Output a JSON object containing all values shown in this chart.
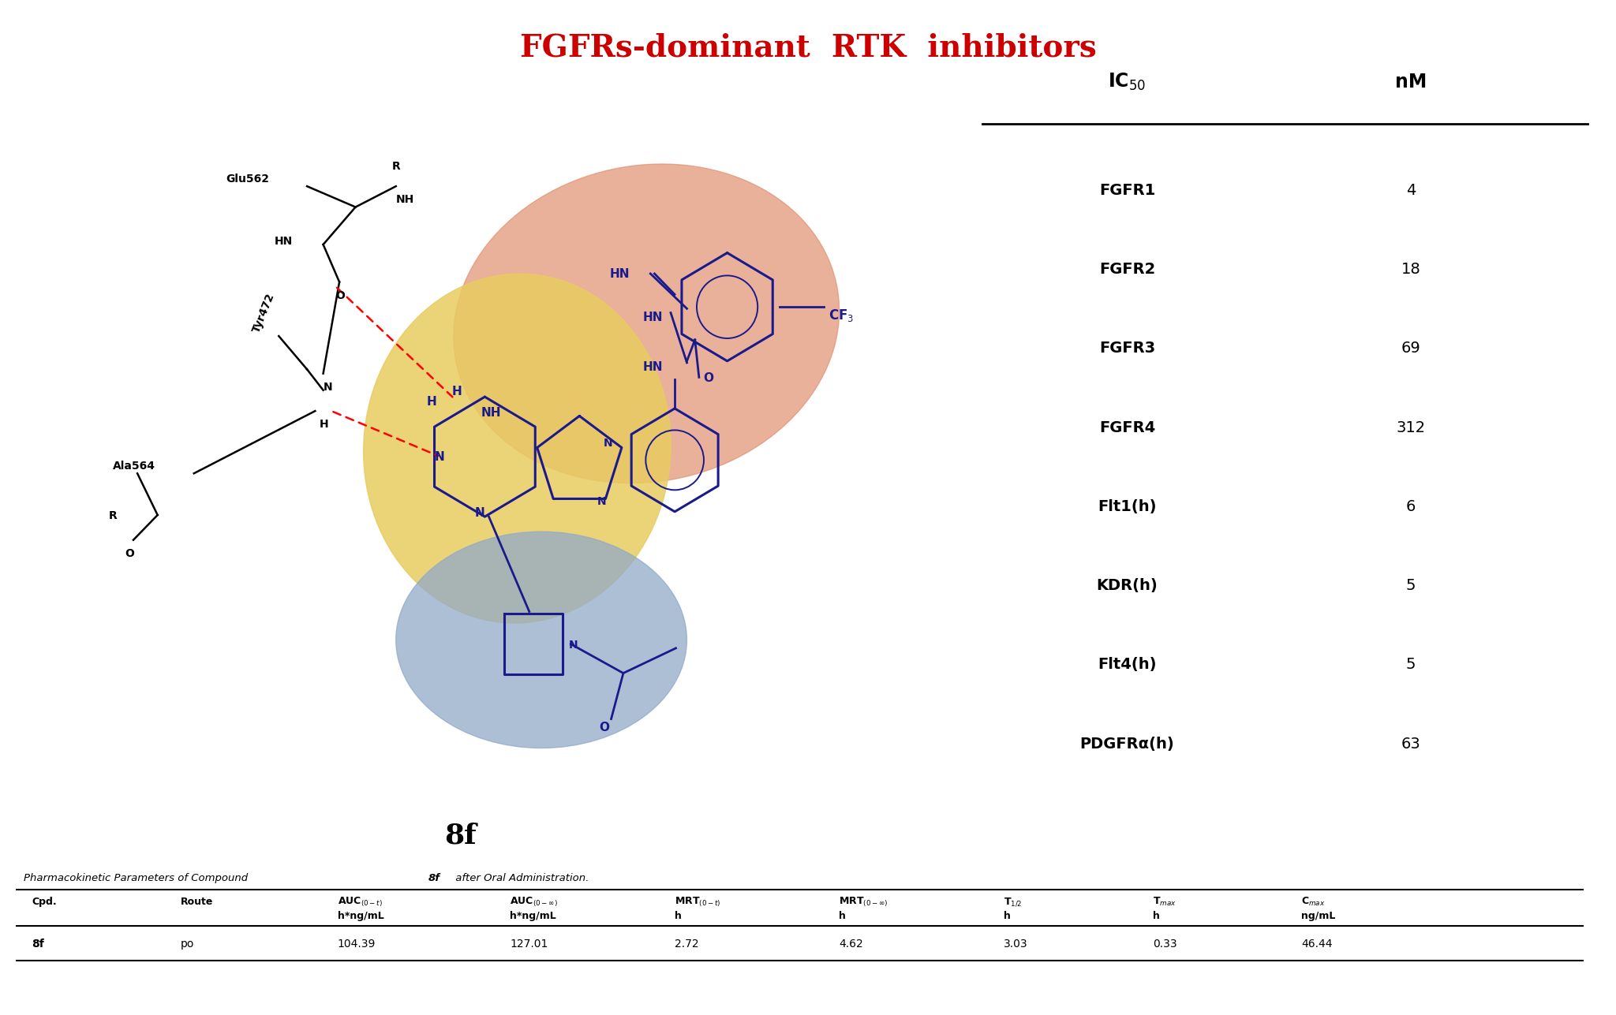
{
  "title": "FGFRs-dominant  RTK  inhibitors",
  "title_color": "#CC0000",
  "title_fontsize": 28,
  "ic50_targets": [
    "FGFR1",
    "FGFR2",
    "FGFR3",
    "FGFR4",
    "Flt1(h)",
    "KDR(h)",
    "Flt4(h)",
    "PDGFRα(h)"
  ],
  "ic50_values": [
    "4",
    "18",
    "69",
    "312",
    "6",
    "5",
    "5",
    "63"
  ],
  "pk_row": [
    "8f",
    "po",
    "104.39",
    "127.01",
    "2.72",
    "4.62",
    "3.03",
    "0.33",
    "46.44"
  ],
  "compound_label": "8f",
  "orange_blob_color": "#E09070",
  "yellow_blob_color": "#E8CC60",
  "blue_blob_color": "#90AAC8",
  "molecule_color": "#1A1A8C",
  "black_color": "#000000",
  "background_color": "#FFFFFF",
  "orange_alpha": 0.7,
  "yellow_alpha": 0.85,
  "blue_alpha": 0.75
}
